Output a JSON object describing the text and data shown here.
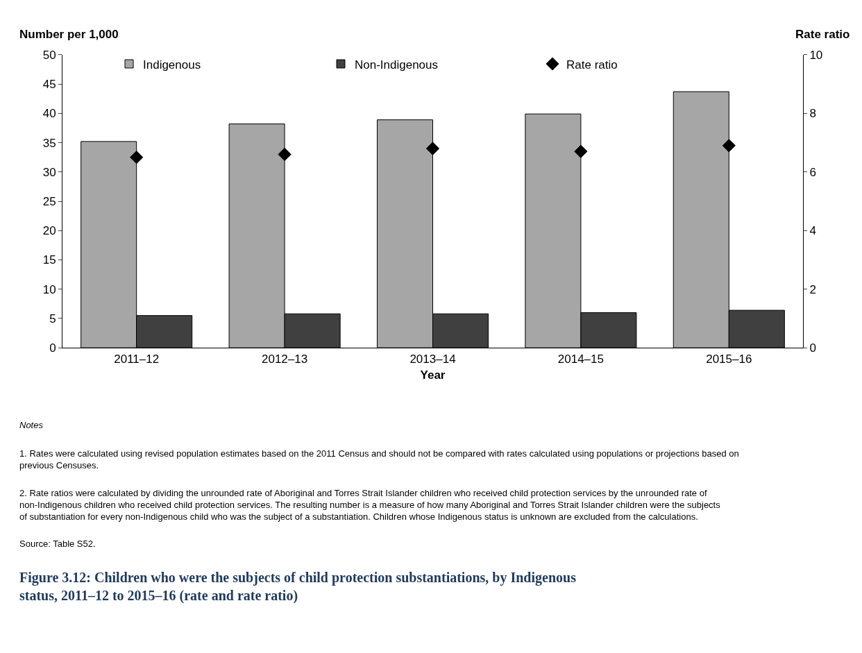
{
  "chart_data": {
    "type": "bar",
    "title": "Figure 3.12: Children who were the subjects of child protection substantiations, by Indigenous status, 2011–12 to 2015–16 (rate and rate ratio)",
    "xlabel": "Year",
    "ylabel": "Number per 1,000",
    "y2label": "Rate ratio",
    "categories": [
      "2011–12",
      "2012–13",
      "2013–14",
      "2014–15",
      "2015–16"
    ],
    "series": [
      {
        "name": "Indigenous",
        "color": "#a6a6a6",
        "values": [
          35.2,
          38.2,
          38.9,
          39.9,
          43.7
        ]
      },
      {
        "name": "Non-Indigenous",
        "color": "#404040",
        "values": [
          5.5,
          5.8,
          5.8,
          6.0,
          6.4
        ]
      },
      {
        "name": "Rate ratio",
        "type": "scatter",
        "axis": "y2",
        "color": "#000000",
        "marker": "diamond",
        "values": [
          6.5,
          6.6,
          6.8,
          6.7,
          6.9
        ]
      }
    ],
    "ylim": [
      0,
      50
    ],
    "yticks": [
      0,
      5,
      10,
      15,
      20,
      25,
      30,
      35,
      40,
      45,
      50
    ],
    "y2lim": [
      0,
      10
    ],
    "y2ticks": [
      0,
      2,
      4,
      6,
      8,
      10
    ],
    "legend": "top",
    "annotations": [
      "Notes",
      "1. Rates were calculated using revised population estimates based on the 2011 Census and should not be compared with rates calculated using populations or projections based on previous Censuses.",
      "2. Rate ratios were calculated by dividing the unrounded rate of Aboriginal and Torres Strait Islander children who received child protection services by the unrounded rate of non-Indigenous children who received child protection services. The resulting number is a measure of how many Aboriginal and Torres Strait Islander children were the subjects of substantiation for every non-Indigenous child who was the subject of a substantiation. Children whose Indigenous status is unknown are excluded from the calculations.",
      "Source: Table S52."
    ]
  }
}
